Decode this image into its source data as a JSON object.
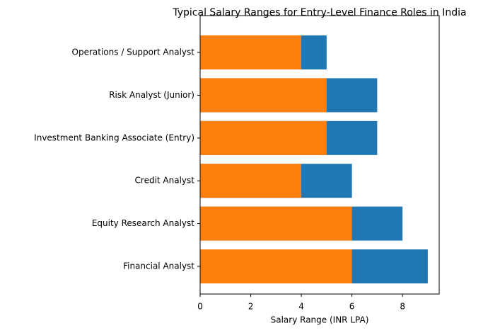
{
  "chart_data": {
    "type": "barh",
    "title": "Typical Salary Ranges for Entry-Level Finance Roles in India",
    "x_label": "Salary Range (INR LPA)",
    "categories": [
      "Financial Analyst",
      "Equity Research Analyst",
      "Credit Analyst",
      "Investment Banking Associate (Entry)",
      "Risk Analyst (Junior)",
      "Operations / Support Analyst"
    ],
    "series": [
      {
        "color": "#1f77b4",
        "values": [
          9,
          8,
          6,
          7,
          7,
          5
        ]
      },
      {
        "color": "#ff7f0e",
        "values": [
          6,
          6,
          4,
          5,
          5,
          4
        ]
      }
    ],
    "xlim": [
      0,
      9.45
    ],
    "xticks": [
      0,
      2,
      4,
      6,
      8
    ],
    "grid": false
  }
}
